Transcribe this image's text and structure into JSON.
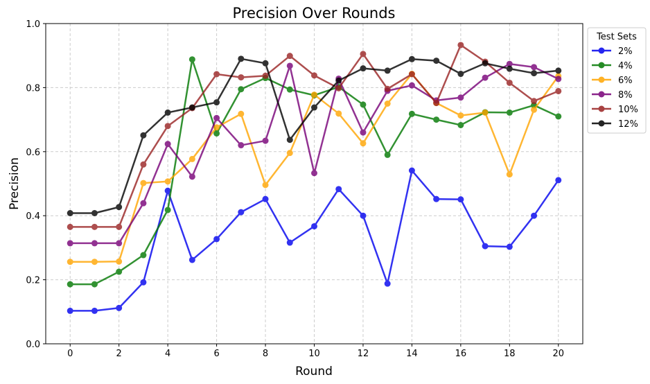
{
  "chart_data": {
    "type": "line",
    "title": "Precision Over Rounds",
    "xlabel": "Round",
    "ylabel": "Precision",
    "xlim": [
      -1,
      21
    ],
    "ylim": [
      0,
      1.0
    ],
    "x": [
      0,
      1,
      2,
      3,
      4,
      5,
      6,
      7,
      8,
      9,
      10,
      11,
      12,
      13,
      14,
      15,
      16,
      17,
      18,
      19,
      20
    ],
    "xticks": [
      0,
      2,
      4,
      6,
      8,
      10,
      12,
      14,
      16,
      18,
      20
    ],
    "xtick_labels": [
      "0",
      "2",
      "4",
      "6",
      "8",
      "10",
      "12",
      "14",
      "16",
      "18",
      "20"
    ],
    "yticks": [
      0,
      0.2,
      0.4,
      0.6,
      0.8,
      1.0
    ],
    "ytick_labels": [
      "0.0",
      "0.2",
      "0.4",
      "0.6",
      "0.8",
      "1.0"
    ],
    "grid": true,
    "legend": {
      "title": "Test Sets",
      "placement": "outside-right-top"
    },
    "series": [
      {
        "name": "2%",
        "color": "#0000ee",
        "values": [
          0.103,
          0.103,
          0.112,
          0.192,
          0.478,
          0.262,
          0.327,
          0.411,
          0.452,
          0.316,
          0.367,
          0.483,
          0.4,
          0.188,
          0.541,
          0.452,
          0.451,
          0.305,
          0.303,
          0.4,
          0.511
        ]
      },
      {
        "name": "4%",
        "color": "#007700",
        "values": [
          0.186,
          0.186,
          0.225,
          0.277,
          0.418,
          0.888,
          0.657,
          0.795,
          0.83,
          0.794,
          0.776,
          0.802,
          0.747,
          0.59,
          0.718,
          0.7,
          0.683,
          0.723,
          0.722,
          0.745,
          0.71
        ]
      },
      {
        "name": "6%",
        "color": "#ffa500",
        "values": [
          0.256,
          0.256,
          0.257,
          0.502,
          0.507,
          0.577,
          0.676,
          0.718,
          0.496,
          0.596,
          0.778,
          0.719,
          0.626,
          0.75,
          0.843,
          0.752,
          0.713,
          0.722,
          0.529,
          0.731,
          0.836
        ]
      },
      {
        "name": "8%",
        "color": "#770077",
        "values": [
          0.314,
          0.314,
          0.314,
          0.439,
          0.624,
          0.522,
          0.705,
          0.62,
          0.634,
          0.868,
          0.533,
          0.828,
          0.66,
          0.79,
          0.807,
          0.76,
          0.769,
          0.831,
          0.874,
          0.864,
          0.827
        ]
      },
      {
        "name": "10%",
        "color": "#992222",
        "values": [
          0.365,
          0.365,
          0.365,
          0.56,
          0.68,
          0.736,
          0.842,
          0.832,
          0.837,
          0.899,
          0.838,
          0.798,
          0.905,
          0.796,
          0.842,
          0.752,
          0.933,
          0.881,
          0.815,
          0.758,
          0.789
        ]
      },
      {
        "name": "12%",
        "color": "#000000",
        "values": [
          0.408,
          0.408,
          0.427,
          0.651,
          0.722,
          0.738,
          0.754,
          0.89,
          0.876,
          0.637,
          0.738,
          0.822,
          0.86,
          0.853,
          0.889,
          0.884,
          0.843,
          0.876,
          0.859,
          0.845,
          0.853
        ]
      }
    ]
  }
}
